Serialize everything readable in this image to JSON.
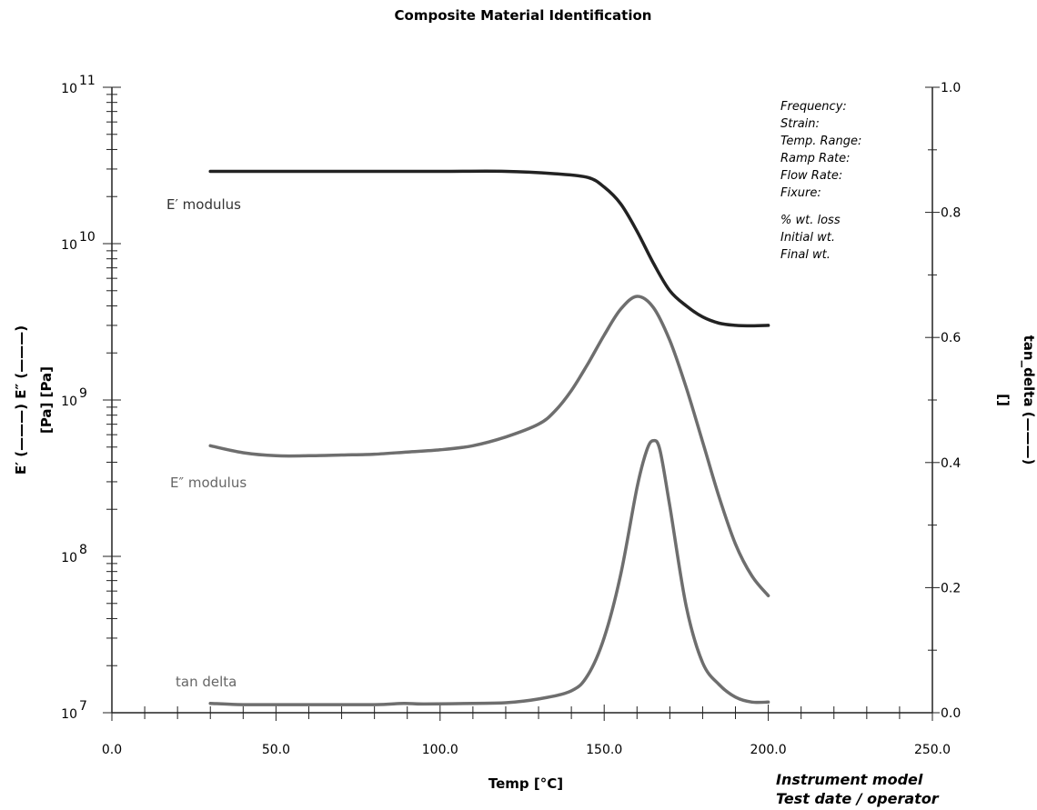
{
  "chart_data": {
    "type": "line",
    "title": "Composite Material Identification",
    "xlabel": "Temp [°C]",
    "xlim": [
      0,
      250
    ],
    "x_ticks": [
      "0.0",
      "50.0",
      "100.0",
      "150.0",
      "200.0",
      "250.0"
    ],
    "y_left": {
      "scale": "log",
      "ylim": [
        10000000,
        100000000000
      ],
      "label_lines": [
        "E′ (———)  E″ (———)",
        "[Pa]   [Pa]"
      ],
      "ticks": [
        {
          "base": "10",
          "exp": "11"
        },
        {
          "base": "10",
          "exp": "10"
        },
        {
          "base": "10",
          "exp": "9"
        },
        {
          "base": "10",
          "exp": "8"
        },
        {
          "base": "10",
          "exp": "7"
        }
      ]
    },
    "y_right": {
      "scale": "linear",
      "ylim": [
        0.0,
        1.0
      ],
      "label_lines": [
        "tan_delta (———)",
        "[]"
      ],
      "ticks": [
        "1.0",
        "0.8",
        "0.6",
        "0.4",
        "0.2",
        "0.0"
      ]
    },
    "series": [
      {
        "name": "E′ modulus",
        "axis": "left",
        "color": "#222222",
        "x": [
          30,
          60,
          100,
          120,
          135,
          145,
          150,
          155,
          160,
          165,
          170,
          175,
          180,
          185,
          190,
          195,
          200
        ],
        "y": [
          29000000000,
          29000000000,
          29000000000,
          29000000000,
          28000000000,
          26500000000,
          23000000000,
          18000000000,
          12000000000,
          7500000000,
          5000000000,
          4000000000,
          3400000000,
          3100000000,
          3000000000,
          2980000000,
          3000000000
        ]
      },
      {
        "name": "E″ modulus",
        "axis": "left",
        "color": "#6e6e6e",
        "x": [
          30,
          40,
          50,
          60,
          70,
          80,
          90,
          100,
          110,
          120,
          130,
          135,
          140,
          145,
          150,
          155,
          160,
          165,
          170,
          175,
          180,
          185,
          190,
          195,
          200
        ],
        "y": [
          510000000,
          460000000,
          440000000,
          440000000,
          445000000,
          450000000,
          465000000,
          480000000,
          510000000,
          580000000,
          700000000,
          850000000,
          1150000000,
          1700000000,
          2600000000,
          3800000000,
          4600000000,
          3900000000,
          2400000000,
          1200000000,
          540000000,
          240000000,
          120000000,
          75000000,
          56000000
        ]
      },
      {
        "name": "tan delta",
        "axis": "right",
        "color": "#6e6e6e",
        "x": [
          30,
          40,
          60,
          80,
          89,
          95,
          110,
          120,
          130,
          140,
          145,
          150,
          155,
          160,
          163,
          165,
          167,
          170,
          175,
          180,
          185,
          190,
          195,
          200
        ],
        "y": [
          0.015,
          0.013,
          0.013,
          0.013,
          0.015,
          0.014,
          0.015,
          0.016,
          0.022,
          0.035,
          0.06,
          0.12,
          0.22,
          0.36,
          0.42,
          0.435,
          0.42,
          0.33,
          0.17,
          0.08,
          0.045,
          0.025,
          0.017,
          0.017
        ]
      }
    ],
    "curve_labels": [
      "E′ modulus",
      "E″ modulus",
      "tan delta"
    ],
    "info_lines": [
      "Frequency:",
      "Strain:",
      "Temp. Range:",
      "Ramp Rate:",
      "Flow Rate:",
      "Fixure:",
      "% wt. loss",
      "Initial wt.",
      "Final wt."
    ],
    "footer_lines": [
      "Instrument model",
      "Test date / operator"
    ]
  }
}
